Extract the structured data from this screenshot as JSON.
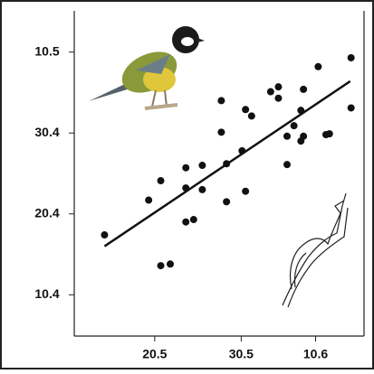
{
  "chart_data": {
    "type": "scatter",
    "x": [
      0.42,
      0.93,
      1.07,
      1.07,
      1.18,
      1.36,
      1.36,
      1.36,
      1.45,
      1.55,
      1.55,
      1.77,
      1.77,
      1.83,
      1.83,
      2.01,
      2.05,
      2.05,
      2.12,
      2.34,
      2.43,
      2.43,
      2.53,
      2.53,
      2.61,
      2.69,
      2.72,
      2.72,
      2.69,
      2.89,
      2.98,
      3.02,
      3.27,
      3.27
    ],
    "y": [
      1.74,
      2.17,
      2.41,
      1.36,
      1.38,
      2.57,
      2.32,
      1.9,
      1.93,
      2.6,
      2.3,
      3.4,
      3.01,
      2.62,
      2.15,
      2.78,
      3.29,
      2.28,
      3.21,
      3.51,
      3.57,
      3.43,
      2.96,
      2.61,
      3.09,
      2.9,
      2.96,
      3.54,
      3.28,
      3.82,
      2.98,
      2.99,
      3.93,
      3.31
    ],
    "color": "#111111",
    "trendline": {
      "x": [
        0.42,
        3.26
      ],
      "y": [
        1.6,
        3.64
      ]
    },
    "xlim": [
      0.07,
      3.42
    ],
    "ylim": [
      0.49,
      4.51
    ],
    "xticks": [
      {
        "value": 1,
        "label": "20.5"
      },
      {
        "value": 2,
        "label": "30.5"
      },
      {
        "value": 2.86,
        "label": "10.6"
      }
    ],
    "yticks": [
      {
        "value": 4,
        "label": "10.5"
      },
      {
        "value": 3,
        "label": "30.4"
      },
      {
        "value": 2,
        "label": "20.4"
      },
      {
        "value": 1,
        "label": "10.4"
      }
    ]
  }
}
